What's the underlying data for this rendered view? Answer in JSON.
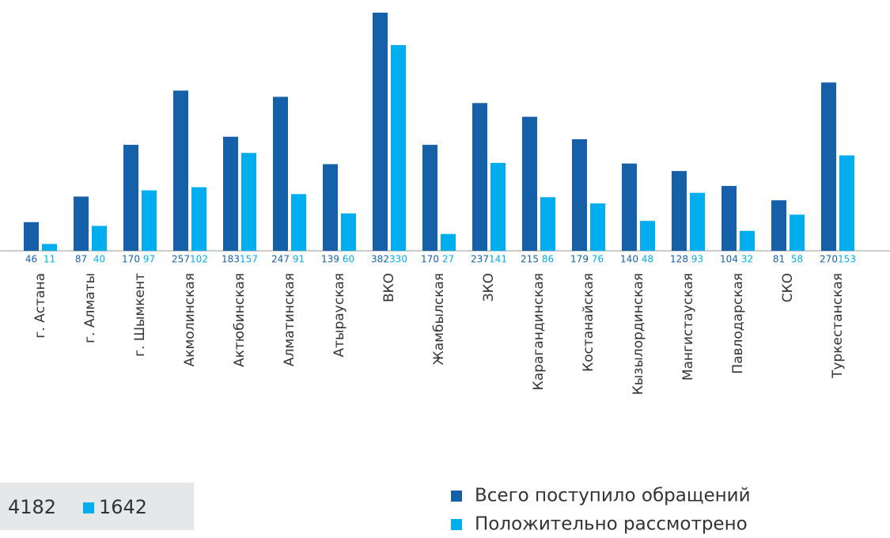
{
  "chart_data": {
    "type": "bar",
    "categories": [
      "г. Астана",
      "г. Алматы",
      "г. Шымкент",
      "Акмолинская",
      "Актюбинская",
      "Алматинская",
      "Атырауская",
      "ВКО",
      "Жамбылская",
      "ЗКО",
      "Карагандинская",
      "Костанайская",
      "Кызылординская",
      "Мангистауская",
      "Павлодарская",
      "СКО",
      "Туркестанская"
    ],
    "series": [
      {
        "name": "Всего поступило обращений",
        "color": "#1560a8",
        "values": [
          46,
          87,
          170,
          257,
          183,
          247,
          139,
          382,
          170,
          237,
          215,
          179,
          140,
          128,
          104,
          81,
          270
        ]
      },
      {
        "name": "Положительно рассмотрено",
        "color": "#00aeef",
        "values": [
          11,
          40,
          97,
          102,
          157,
          91,
          60,
          330,
          27,
          141,
          86,
          76,
          48,
          93,
          32,
          58,
          153
        ]
      }
    ],
    "totals": [
      4182,
      1642
    ],
    "legend": "bottom-right"
  }
}
